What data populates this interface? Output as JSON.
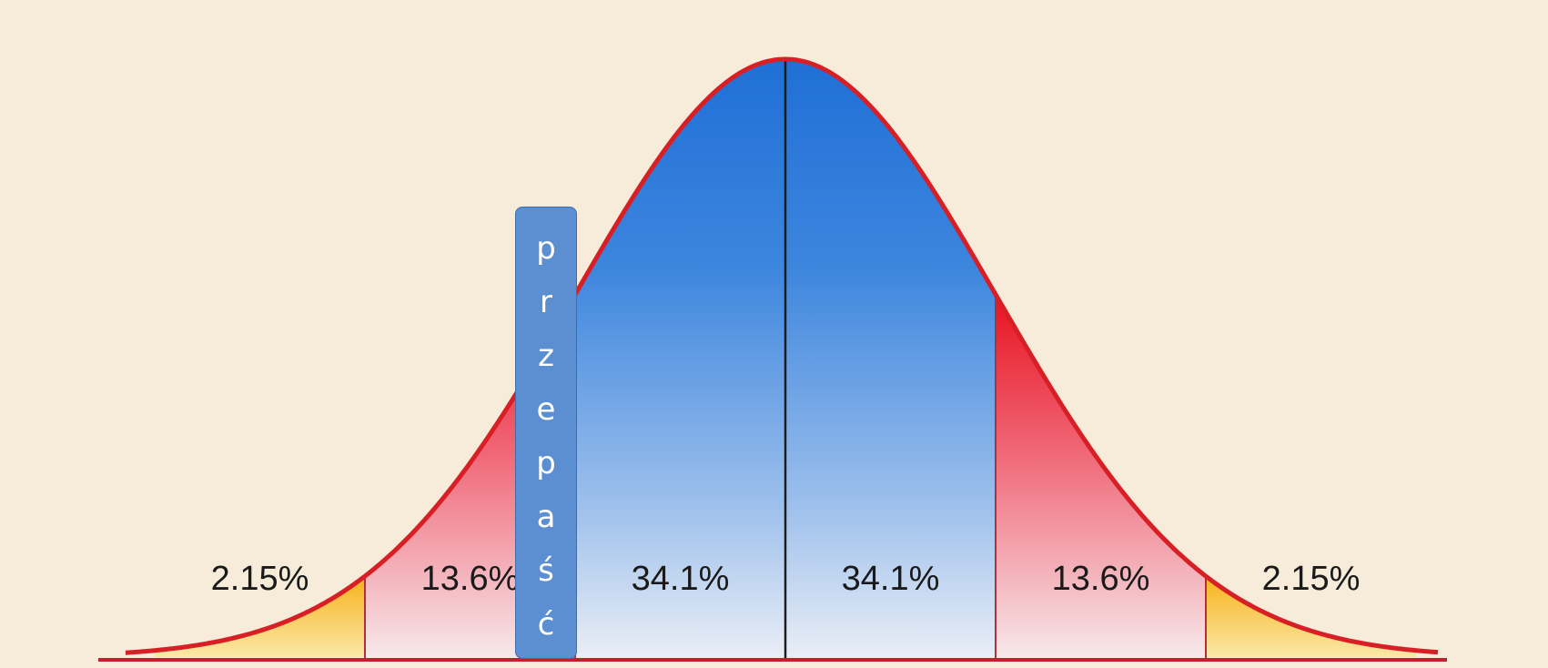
{
  "chart_data": {
    "type": "area",
    "distribution": "normal",
    "x_tick_labels": [],
    "boundaries_sd": [
      -3,
      -2,
      -1,
      0,
      1,
      2,
      3
    ],
    "regions": [
      {
        "range": [
          -3,
          -2
        ],
        "label": "2.15%",
        "value": 2.15,
        "color": "#f2c23a"
      },
      {
        "range": [
          -2,
          -1
        ],
        "label": "13.6%",
        "value": 13.6,
        "color": "#ee2f45"
      },
      {
        "range": [
          -1,
          0
        ],
        "label": "34.1%",
        "value": 34.1,
        "color": "#2f7fd9"
      },
      {
        "range": [
          0,
          1
        ],
        "label": "34.1%",
        "value": 34.1,
        "color": "#2f7fd9"
      },
      {
        "range": [
          1,
          2
        ],
        "label": "13.6%",
        "value": 13.6,
        "color": "#ee2f45"
      },
      {
        "range": [
          2,
          3
        ],
        "label": "2.15%",
        "value": 2.15,
        "color": "#f2c23a"
      }
    ],
    "curve_color": "#d91f26",
    "background": "#f6ecd9"
  },
  "overlay": {
    "letters": [
      "p",
      "r",
      "z",
      "e",
      "p",
      "a",
      "ś",
      "ć"
    ],
    "color": "#5b8fd2"
  }
}
